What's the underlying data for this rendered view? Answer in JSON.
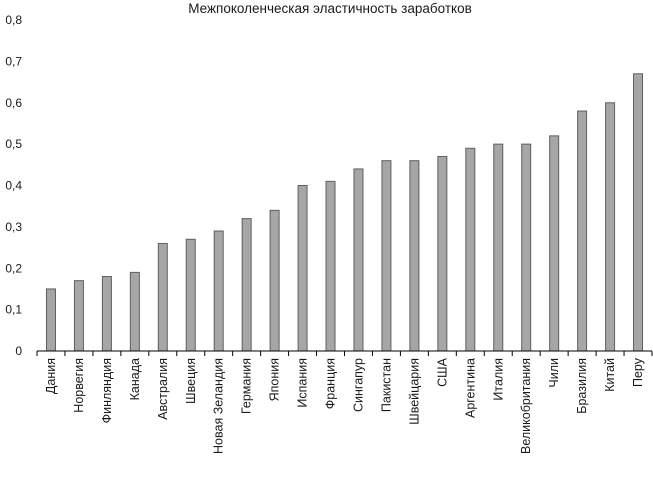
{
  "colors": {
    "bar_fill": "#a6a6a6",
    "bar_edge": "#5f5f5f",
    "axis": "#000000",
    "background": "#ffffff"
  },
  "chart_data": {
    "type": "bar",
    "title": "Межпоколенческая эластичность заработков",
    "xlabel": "",
    "ylabel": "",
    "ylim": [
      0,
      0.8
    ],
    "yticks": [
      "0",
      "0,1",
      "0,2",
      "0,3",
      "0,4",
      "0,5",
      "0,6",
      "0,7",
      "0,8"
    ],
    "grid": false,
    "legend": "none",
    "categories": [
      "Дания",
      "Норвегия",
      "Финляндия",
      "Канада",
      "Австралия",
      "Швеция",
      "Новая Зеландия",
      "Германия",
      "Япония",
      "Испания",
      "Франция",
      "Сингапур",
      "Пакистан",
      "Швейцария",
      "США",
      "Аргентина",
      "Италия",
      "Великобритания",
      "Чили",
      "Бразилия",
      "Китай",
      "Перу"
    ],
    "values": [
      0.15,
      0.17,
      0.18,
      0.19,
      0.26,
      0.27,
      0.29,
      0.32,
      0.34,
      0.4,
      0.41,
      0.44,
      0.46,
      0.46,
      0.47,
      0.49,
      0.5,
      0.5,
      0.52,
      0.58,
      0.6,
      0.67
    ]
  }
}
